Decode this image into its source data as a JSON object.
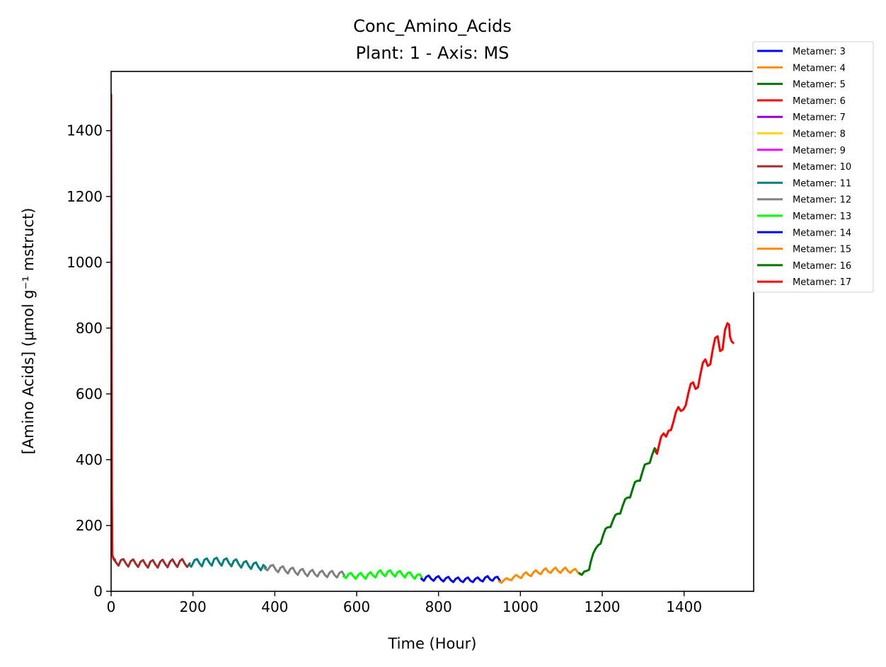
{
  "chart_data": {
    "type": "line",
    "title": "Conc_Amino_Acids",
    "subtitle": "Plant: 1 - Axis: MS",
    "xlabel": "Time (Hour)",
    "ylabel": "[Amino Acids] (µmol g⁻¹ mstruct)",
    "xlim": [
      0,
      1570
    ],
    "ylim": [
      0,
      1580
    ],
    "xticks": [
      0,
      200,
      400,
      600,
      800,
      1000,
      1200,
      1400
    ],
    "yticks": [
      0,
      200,
      400,
      600,
      800,
      1000,
      1200,
      1400
    ],
    "grid": false,
    "legend_placement": "outside-top-right",
    "series": [
      {
        "name": "Metamer: 3",
        "color": "#0000ff",
        "points": []
      },
      {
        "name": "Metamer: 4",
        "color": "#ff8c00",
        "points": []
      },
      {
        "name": "Metamer: 5",
        "color": "#007700",
        "points": []
      },
      {
        "name": "Metamer: 6",
        "color": "#ff0000",
        "points": [
          [
            0,
            1510
          ],
          [
            1,
            900
          ],
          [
            2,
            300
          ],
          [
            3,
            110
          ],
          [
            6,
            100
          ],
          [
            10,
            95
          ]
        ]
      },
      {
        "name": "Metamer: 7",
        "color": "#9400d3",
        "points": []
      },
      {
        "name": "Metamer: 8",
        "color": "#ffd700",
        "points": []
      },
      {
        "name": "Metamer: 9",
        "color": "#ff00ff",
        "points": []
      },
      {
        "name": "Metamer: 10",
        "color": "#a52a2a",
        "points": [
          [
            5,
            100
          ],
          [
            12,
            88
          ],
          [
            18,
            78
          ],
          [
            24,
            95
          ],
          [
            30,
            98
          ],
          [
            36,
            85
          ],
          [
            42,
            75
          ],
          [
            48,
            92
          ],
          [
            54,
            97
          ],
          [
            60,
            84
          ],
          [
            66,
            74
          ],
          [
            72,
            90
          ],
          [
            78,
            95
          ],
          [
            84,
            82
          ],
          [
            90,
            72
          ],
          [
            96,
            90
          ],
          [
            102,
            95
          ],
          [
            108,
            82
          ],
          [
            114,
            72
          ],
          [
            120,
            90
          ],
          [
            126,
            96
          ],
          [
            132,
            83
          ],
          [
            138,
            73
          ],
          [
            144,
            90
          ],
          [
            150,
            97
          ],
          [
            156,
            84
          ],
          [
            162,
            74
          ],
          [
            168,
            92
          ],
          [
            174,
            98
          ],
          [
            180,
            84
          ],
          [
            186,
            74
          ],
          [
            192,
            85
          ]
        ]
      },
      {
        "name": "Metamer: 11",
        "color": "#008080",
        "points": [
          [
            190,
            82
          ],
          [
            196,
            75
          ],
          [
            204,
            95
          ],
          [
            210,
            98
          ],
          [
            216,
            85
          ],
          [
            222,
            76
          ],
          [
            228,
            96
          ],
          [
            234,
            100
          ],
          [
            240,
            87
          ],
          [
            246,
            78
          ],
          [
            252,
            98
          ],
          [
            258,
            102
          ],
          [
            264,
            88
          ],
          [
            270,
            78
          ],
          [
            276,
            96
          ],
          [
            282,
            100
          ],
          [
            288,
            86
          ],
          [
            294,
            76
          ],
          [
            300,
            93
          ],
          [
            306,
            97
          ],
          [
            312,
            82
          ],
          [
            318,
            72
          ],
          [
            324,
            88
          ],
          [
            330,
            92
          ],
          [
            336,
            78
          ],
          [
            342,
            68
          ],
          [
            348,
            84
          ],
          [
            354,
            88
          ],
          [
            360,
            74
          ],
          [
            366,
            64
          ],
          [
            372,
            80
          ],
          [
            378,
            72
          ]
        ]
      },
      {
        "name": "Metamer: 12",
        "color": "#808080",
        "points": [
          [
            375,
            70
          ],
          [
            382,
            64
          ],
          [
            390,
            78
          ],
          [
            396,
            80
          ],
          [
            402,
            66
          ],
          [
            408,
            58
          ],
          [
            414,
            72
          ],
          [
            420,
            76
          ],
          [
            426,
            62
          ],
          [
            432,
            54
          ],
          [
            438,
            68
          ],
          [
            444,
            72
          ],
          [
            450,
            58
          ],
          [
            456,
            50
          ],
          [
            462,
            64
          ],
          [
            468,
            68
          ],
          [
            474,
            54
          ],
          [
            480,
            46
          ],
          [
            486,
            60
          ],
          [
            492,
            65
          ],
          [
            498,
            52
          ],
          [
            504,
            45
          ],
          [
            510,
            58
          ],
          [
            516,
            63
          ],
          [
            522,
            50
          ],
          [
            528,
            43
          ],
          [
            534,
            57
          ],
          [
            540,
            62
          ],
          [
            546,
            49
          ],
          [
            552,
            42
          ],
          [
            558,
            56
          ],
          [
            564,
            60
          ],
          [
            570,
            48
          ]
        ]
      },
      {
        "name": "Metamer: 13",
        "color": "#00ff00",
        "points": [
          [
            568,
            46
          ],
          [
            574,
            40
          ],
          [
            580,
            52
          ],
          [
            586,
            56
          ],
          [
            592,
            46
          ],
          [
            598,
            38
          ],
          [
            604,
            50
          ],
          [
            610,
            56
          ],
          [
            616,
            46
          ],
          [
            622,
            38
          ],
          [
            628,
            52
          ],
          [
            634,
            58
          ],
          [
            640,
            48
          ],
          [
            646,
            42
          ],
          [
            652,
            58
          ],
          [
            658,
            64
          ],
          [
            664,
            52
          ],
          [
            670,
            46
          ],
          [
            676,
            60
          ],
          [
            682,
            64
          ],
          [
            688,
            52
          ],
          [
            694,
            45
          ],
          [
            700,
            58
          ],
          [
            706,
            62
          ],
          [
            712,
            50
          ],
          [
            718,
            42
          ],
          [
            724,
            55
          ],
          [
            730,
            58
          ],
          [
            736,
            46
          ],
          [
            742,
            38
          ],
          [
            748,
            50
          ],
          [
            754,
            52
          ],
          [
            760,
            40
          ]
        ]
      },
      {
        "name": "Metamer: 14",
        "color": "#0000ff",
        "points": [
          [
            758,
            38
          ],
          [
            764,
            32
          ],
          [
            770,
            44
          ],
          [
            776,
            48
          ],
          [
            782,
            38
          ],
          [
            788,
            32
          ],
          [
            794,
            42
          ],
          [
            800,
            46
          ],
          [
            806,
            36
          ],
          [
            812,
            30
          ],
          [
            818,
            40
          ],
          [
            824,
            44
          ],
          [
            830,
            34
          ],
          [
            836,
            28
          ],
          [
            842,
            38
          ],
          [
            848,
            42
          ],
          [
            854,
            32
          ],
          [
            860,
            28
          ],
          [
            866,
            38
          ],
          [
            872,
            42
          ],
          [
            878,
            32
          ],
          [
            884,
            28
          ],
          [
            890,
            38
          ],
          [
            896,
            42
          ],
          [
            902,
            34
          ],
          [
            908,
            30
          ],
          [
            914,
            42
          ],
          [
            920,
            46
          ],
          [
            926,
            36
          ],
          [
            932,
            32
          ],
          [
            938,
            42
          ],
          [
            944,
            44
          ],
          [
            950,
            32
          ]
        ]
      },
      {
        "name": "Metamer: 15",
        "color": "#ff8c00",
        "points": [
          [
            948,
            30
          ],
          [
            954,
            26
          ],
          [
            960,
            34
          ],
          [
            966,
            40
          ],
          [
            972,
            36
          ],
          [
            978,
            34
          ],
          [
            984,
            44
          ],
          [
            990,
            50
          ],
          [
            996,
            44
          ],
          [
            1002,
            40
          ],
          [
            1008,
            52
          ],
          [
            1014,
            58
          ],
          [
            1020,
            50
          ],
          [
            1026,
            46
          ],
          [
            1032,
            58
          ],
          [
            1038,
            64
          ],
          [
            1044,
            56
          ],
          [
            1050,
            52
          ],
          [
            1056,
            64
          ],
          [
            1062,
            70
          ],
          [
            1068,
            60
          ],
          [
            1074,
            56
          ],
          [
            1080,
            66
          ],
          [
            1086,
            72
          ],
          [
            1092,
            62
          ],
          [
            1098,
            56
          ],
          [
            1104,
            66
          ],
          [
            1110,
            72
          ],
          [
            1116,
            62
          ],
          [
            1122,
            56
          ],
          [
            1128,
            64
          ],
          [
            1134,
            68
          ],
          [
            1140,
            58
          ],
          [
            1146,
            52
          ]
        ]
      },
      {
        "name": "Metamer: 16",
        "color": "#007700",
        "points": [
          [
            1144,
            55
          ],
          [
            1150,
            50
          ],
          [
            1156,
            60
          ],
          [
            1162,
            62
          ],
          [
            1168,
            66
          ],
          [
            1172,
            90
          ],
          [
            1178,
            115
          ],
          [
            1184,
            130
          ],
          [
            1190,
            140
          ],
          [
            1196,
            145
          ],
          [
            1202,
            170
          ],
          [
            1208,
            190
          ],
          [
            1214,
            195
          ],
          [
            1220,
            195
          ],
          [
            1226,
            215
          ],
          [
            1232,
            232
          ],
          [
            1238,
            236
          ],
          [
            1244,
            236
          ],
          [
            1250,
            260
          ],
          [
            1256,
            280
          ],
          [
            1262,
            285
          ],
          [
            1268,
            285
          ],
          [
            1274,
            310
          ],
          [
            1280,
            332
          ],
          [
            1286,
            336
          ],
          [
            1292,
            336
          ],
          [
            1298,
            362
          ],
          [
            1304,
            385
          ],
          [
            1310,
            388
          ],
          [
            1316,
            390
          ],
          [
            1322,
            415
          ],
          [
            1328,
            435
          ],
          [
            1334,
            425
          ]
        ]
      },
      {
        "name": "Metamer: 17",
        "color": "#ff0000",
        "points": [
          [
            1330,
            425
          ],
          [
            1334,
            418
          ],
          [
            1338,
            440
          ],
          [
            1344,
            470
          ],
          [
            1350,
            480
          ],
          [
            1356,
            470
          ],
          [
            1362,
            488
          ],
          [
            1368,
            490
          ],
          [
            1374,
            515
          ],
          [
            1380,
            545
          ],
          [
            1386,
            560
          ],
          [
            1392,
            548
          ],
          [
            1398,
            552
          ],
          [
            1404,
            565
          ],
          [
            1410,
            600
          ],
          [
            1416,
            630
          ],
          [
            1422,
            635
          ],
          [
            1428,
            615
          ],
          [
            1434,
            620
          ],
          [
            1440,
            660
          ],
          [
            1446,
            695
          ],
          [
            1452,
            705
          ],
          [
            1458,
            685
          ],
          [
            1464,
            690
          ],
          [
            1470,
            735
          ],
          [
            1476,
            770
          ],
          [
            1482,
            775
          ],
          [
            1488,
            730
          ],
          [
            1494,
            735
          ],
          [
            1500,
            795
          ],
          [
            1506,
            815
          ],
          [
            1510,
            810
          ],
          [
            1512,
            775
          ],
          [
            1516,
            760
          ],
          [
            1520,
            755
          ]
        ]
      }
    ]
  }
}
